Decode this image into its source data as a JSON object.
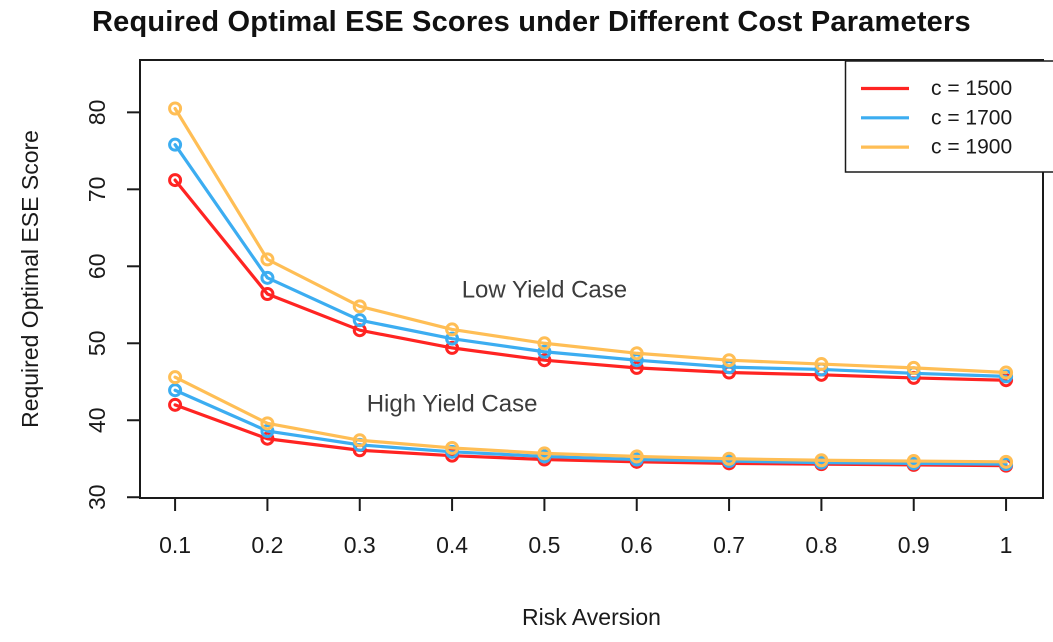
{
  "title": "Required Optimal ESE Scores under Different Cost Parameters",
  "colors": {
    "axis": "#1a1a1a",
    "annotation": "#3c3c3c",
    "background": "#ffffff",
    "c1500": "#ff2422",
    "c1700": "#3cadf1",
    "c1900": "#ffbe55"
  },
  "chart_data": {
    "type": "line",
    "title": "Required Optimal ESE Scores under Different Cost Parameters",
    "xlabel": "Risk Aversion",
    "ylabel": "Required Optimal ESE Score",
    "x": [
      0.1,
      0.2,
      0.3,
      0.4,
      0.5,
      0.6,
      0.7,
      0.8,
      0.9,
      1
    ],
    "xtick_labels": [
      "0.1",
      "0.2",
      "0.3",
      "0.4",
      "0.5",
      "0.6",
      "0.7",
      "0.8",
      "0.9",
      "1"
    ],
    "yticks": [
      30,
      40,
      50,
      60,
      70,
      80
    ],
    "ytick_labels": [
      "30",
      "40",
      "50",
      "60",
      "70",
      "80"
    ],
    "xlim": [
      0.062,
      1.04
    ],
    "ylim": [
      29.9,
      86.8
    ],
    "grid": false,
    "marker": "open-circle",
    "legend_position": "top-right",
    "series": [
      {
        "name": "c = 1500",
        "case": "Low Yield Case",
        "color": "#ff2422",
        "values": [
          71.2,
          56.4,
          51.7,
          49.4,
          47.8,
          46.8,
          46.2,
          45.9,
          45.5,
          45.2
        ]
      },
      {
        "name": "c = 1700",
        "case": "Low Yield Case",
        "color": "#3cadf1",
        "values": [
          75.8,
          58.5,
          53.0,
          50.6,
          48.9,
          47.8,
          46.9,
          46.6,
          46.1,
          45.7
        ]
      },
      {
        "name": "c = 1900",
        "case": "Low Yield Case",
        "color": "#ffbe55",
        "values": [
          80.5,
          60.9,
          54.8,
          51.8,
          50.0,
          48.7,
          47.8,
          47.3,
          46.8,
          46.2
        ]
      },
      {
        "name": "c = 1500",
        "case": "High Yield Case",
        "color": "#ff2422",
        "values": [
          42.0,
          37.6,
          36.1,
          35.4,
          34.9,
          34.6,
          34.4,
          34.3,
          34.2,
          34.1
        ]
      },
      {
        "name": "c = 1700",
        "case": "High Yield Case",
        "color": "#3cadf1",
        "values": [
          43.9,
          38.6,
          36.8,
          35.9,
          35.3,
          34.9,
          34.7,
          34.5,
          34.4,
          34.3
        ]
      },
      {
        "name": "c = 1900",
        "case": "High Yield Case",
        "color": "#ffbe55",
        "values": [
          45.6,
          39.6,
          37.4,
          36.4,
          35.7,
          35.3,
          35.0,
          34.8,
          34.7,
          34.6
        ]
      }
    ],
    "legend": [
      {
        "label": "c = 1500",
        "color": "#ff2422"
      },
      {
        "label": "c = 1700",
        "color": "#3cadf1"
      },
      {
        "label": "c = 1900",
        "color": "#ffbe55"
      }
    ],
    "annotations": [
      {
        "text": "Low Yield Case",
        "x": 0.5,
        "y": 56.9
      },
      {
        "text": "High Yield Case",
        "x": 0.4,
        "y": 42.1
      }
    ]
  }
}
